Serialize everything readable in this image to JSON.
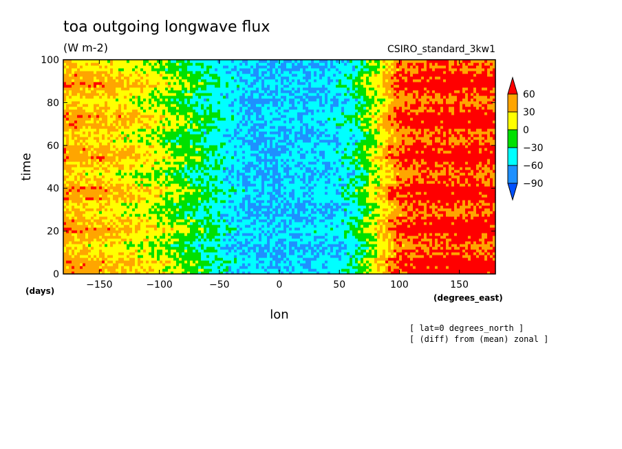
{
  "chart_data": {
    "type": "heatmap",
    "title": "toa outgoing longwave flux",
    "units": "(W m-2)",
    "dataset": "CSIRO_standard_3kw1",
    "xlabel": "lon",
    "x_units": "(degrees_east)",
    "ylabel": "time",
    "y_units": "(days)",
    "xlim": [
      -180,
      180
    ],
    "ylim": [
      0,
      100
    ],
    "x_ticks": [
      -150,
      -100,
      -50,
      0,
      50,
      100,
      150
    ],
    "y_ticks": [
      0,
      20,
      40,
      60,
      80,
      100
    ],
    "x_tick_labels": [
      "−150",
      "−100",
      "−50",
      "0",
      "50",
      "100",
      "150"
    ],
    "y_tick_labels": [
      "0",
      "20",
      "40",
      "60",
      "80",
      "100"
    ],
    "colorbar": {
      "levels": [
        60,
        30,
        0,
        -30,
        -60,
        -90
      ],
      "level_labels": [
        "60",
        "30",
        "0",
        "−30",
        "−60",
        "−90"
      ],
      "colors": [
        "#ff0000",
        "#ffa500",
        "#ffff00",
        "#00e000",
        "#00ffff",
        "#1e90ff",
        "#0050ff"
      ]
    },
    "annotations": [
      "[ lat=0 degrees_north ]",
      "[ (diff) from (mean) zonal ]"
    ],
    "zonal_profile": {
      "lon": [
        -180,
        -160,
        -140,
        -120,
        -100,
        -80,
        -60,
        -40,
        -20,
        0,
        20,
        40,
        60,
        80,
        100,
        120,
        140,
        160,
        180
      ],
      "approx_value": [
        42,
        35,
        30,
        20,
        8,
        -10,
        -30,
        -50,
        -60,
        -60,
        -58,
        -55,
        -40,
        10,
        60,
        68,
        70,
        70,
        65
      ]
    }
  }
}
